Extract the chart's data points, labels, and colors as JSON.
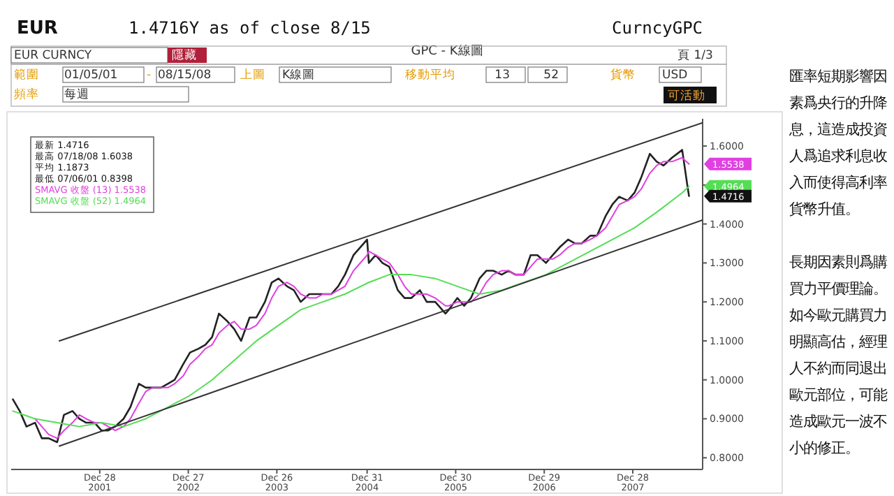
{
  "chart_data": {
    "type": "line",
    "title": "GPC - K線圖",
    "x": [
      "2001-01-05",
      "2001-02-02",
      "2001-03-02",
      "2001-04-06",
      "2001-05-04",
      "2001-06-01",
      "2001-07-06",
      "2001-08-03",
      "2001-09-07",
      "2001-10-05",
      "2001-11-02",
      "2001-12-07",
      "2002-01-04",
      "2002-02-01",
      "2002-03-01",
      "2002-04-05",
      "2002-05-03",
      "2002-06-07",
      "2002-07-05",
      "2002-08-02",
      "2002-09-06",
      "2002-10-04",
      "2002-11-01",
      "2002-12-06",
      "2003-01-03",
      "2003-02-07",
      "2003-03-07",
      "2003-04-04",
      "2003-05-02",
      "2003-06-06",
      "2003-07-04",
      "2003-08-01",
      "2003-09-05",
      "2003-10-03",
      "2003-11-07",
      "2003-12-05",
      "2004-01-02",
      "2004-02-06",
      "2004-03-05",
      "2004-04-02",
      "2004-05-07",
      "2004-06-04",
      "2004-07-02",
      "2004-08-06",
      "2004-09-03",
      "2004-10-01",
      "2004-11-05",
      "2004-12-31",
      "2005-01-07",
      "2005-02-04",
      "2005-03-04",
      "2005-04-01",
      "2005-05-06",
      "2005-06-03",
      "2005-07-01",
      "2005-08-05",
      "2005-09-02",
      "2005-10-07",
      "2005-11-18",
      "2005-12-02",
      "2006-01-06",
      "2006-02-03",
      "2006-03-03",
      "2006-04-07",
      "2006-05-05",
      "2006-06-02",
      "2006-07-07",
      "2006-08-04",
      "2006-09-01",
      "2006-10-06",
      "2006-11-03",
      "2006-12-01",
      "2007-01-05",
      "2007-02-02",
      "2007-03-02",
      "2007-04-06",
      "2007-05-04",
      "2007-06-01",
      "2007-07-06",
      "2007-08-03",
      "2007-09-07",
      "2007-10-05",
      "2007-11-02",
      "2007-12-07",
      "2008-01-04",
      "2008-02-01",
      "2008-03-07",
      "2008-04-04",
      "2008-05-02",
      "2008-06-06",
      "2008-07-18",
      "2008-08-08",
      "2008-08-15"
    ],
    "series": [
      {
        "color": "#222222",
        "values": [
          0.95,
          0.92,
          0.88,
          0.89,
          0.85,
          0.85,
          0.84,
          0.91,
          0.92,
          0.9,
          0.89,
          0.89,
          0.87,
          0.87,
          0.88,
          0.9,
          0.93,
          0.99,
          0.98,
          0.98,
          0.98,
          0.99,
          1.0,
          1.04,
          1.07,
          1.08,
          1.09,
          1.11,
          1.17,
          1.15,
          1.13,
          1.1,
          1.16,
          1.16,
          1.2,
          1.25,
          1.26,
          1.24,
          1.23,
          1.2,
          1.22,
          1.22,
          1.22,
          1.22,
          1.24,
          1.27,
          1.32,
          1.36,
          1.3,
          1.32,
          1.3,
          1.29,
          1.23,
          1.21,
          1.21,
          1.23,
          1.2,
          1.2,
          1.17,
          1.18,
          1.21,
          1.19,
          1.21,
          1.26,
          1.28,
          1.28,
          1.27,
          1.28,
          1.27,
          1.27,
          1.32,
          1.32,
          1.3,
          1.32,
          1.34,
          1.36,
          1.35,
          1.35,
          1.37,
          1.37,
          1.42,
          1.45,
          1.47,
          1.46,
          1.48,
          1.52,
          1.58,
          1.56,
          1.55,
          1.57,
          1.59,
          1.5,
          1.4716
        ]
      },
      {
        "name": "SMAVG 收盤 (13) 1.5538",
        "color": "#e040e0",
        "x": [
          "2001-04-06",
          "2001-05-04",
          "2001-06-01",
          "2001-07-06",
          "2001-08-03",
          "2001-09-07",
          "2001-10-05",
          "2001-11-02",
          "2001-12-07",
          "2002-01-04",
          "2002-02-01",
          "2002-03-01",
          "2002-04-05",
          "2002-05-03",
          "2002-06-07",
          "2002-07-05",
          "2002-08-02",
          "2002-09-06",
          "2002-10-04",
          "2002-11-01",
          "2002-12-06",
          "2003-01-03",
          "2003-02-07",
          "2003-03-07",
          "2003-04-04",
          "2003-05-02",
          "2003-06-06",
          "2003-07-04",
          "2003-08-01",
          "2003-09-05",
          "2003-10-03",
          "2003-11-07",
          "2003-12-05",
          "2004-01-02",
          "2004-02-06",
          "2004-03-05",
          "2004-04-02",
          "2004-05-07",
          "2004-06-04",
          "2004-07-02",
          "2004-08-06",
          "2004-09-03",
          "2004-10-01",
          "2004-11-05",
          "2004-12-31",
          "2005-01-07",
          "2005-02-04",
          "2005-03-04",
          "2005-04-01",
          "2005-05-06",
          "2005-06-03",
          "2005-07-01",
          "2005-08-05",
          "2005-09-02",
          "2005-10-07",
          "2005-11-18",
          "2005-12-02",
          "2006-01-06",
          "2006-02-03",
          "2006-03-03",
          "2006-04-07",
          "2006-05-05",
          "2006-06-02",
          "2006-07-07",
          "2006-08-04",
          "2006-09-01",
          "2006-10-06",
          "2006-11-03",
          "2006-12-01",
          "2007-01-05",
          "2007-02-02",
          "2007-03-02",
          "2007-04-06",
          "2007-05-04",
          "2007-06-01",
          "2007-07-06",
          "2007-08-03",
          "2007-09-07",
          "2007-10-05",
          "2007-11-02",
          "2007-12-07",
          "2008-01-04",
          "2008-02-01",
          "2008-03-07",
          "2008-04-04",
          "2008-05-02",
          "2008-06-06",
          "2008-07-18",
          "2008-08-15"
        ],
        "values": [
          0.9,
          0.88,
          0.86,
          0.85,
          0.87,
          0.89,
          0.91,
          0.9,
          0.89,
          0.89,
          0.88,
          0.87,
          0.88,
          0.9,
          0.94,
          0.97,
          0.98,
          0.98,
          0.98,
          0.99,
          1.01,
          1.04,
          1.06,
          1.08,
          1.09,
          1.12,
          1.14,
          1.15,
          1.13,
          1.13,
          1.14,
          1.17,
          1.21,
          1.24,
          1.25,
          1.24,
          1.22,
          1.21,
          1.21,
          1.22,
          1.22,
          1.23,
          1.24,
          1.28,
          1.32,
          1.33,
          1.32,
          1.31,
          1.3,
          1.27,
          1.24,
          1.22,
          1.22,
          1.22,
          1.21,
          1.19,
          1.19,
          1.2,
          1.2,
          1.2,
          1.22,
          1.25,
          1.27,
          1.28,
          1.28,
          1.27,
          1.27,
          1.29,
          1.31,
          1.31,
          1.31,
          1.32,
          1.34,
          1.35,
          1.35,
          1.36,
          1.37,
          1.39,
          1.42,
          1.45,
          1.46,
          1.47,
          1.49,
          1.53,
          1.55,
          1.56,
          1.56,
          1.57,
          1.5538
        ]
      },
      {
        "name": "SMAVG 收盤 (52) 1.4964",
        "color": "#55dd55",
        "x": [
          "2001-01-05",
          "2001-04-06",
          "2001-07-06",
          "2001-10-05",
          "2002-01-04",
          "2002-04-05",
          "2002-07-05",
          "2002-10-04",
          "2003-01-03",
          "2003-04-04",
          "2003-07-04",
          "2003-10-03",
          "2004-01-02",
          "2004-04-02",
          "2004-07-02",
          "2004-10-01",
          "2005-01-07",
          "2005-04-01",
          "2005-07-01",
          "2005-10-07",
          "2006-01-06",
          "2006-04-07",
          "2006-07-07",
          "2006-10-06",
          "2007-01-05",
          "2007-04-06",
          "2007-07-06",
          "2007-10-05",
          "2008-01-04",
          "2008-04-04",
          "2008-07-18",
          "2008-08-15"
        ],
        "values": [
          0.92,
          0.9,
          0.89,
          0.88,
          0.89,
          0.88,
          0.9,
          0.93,
          0.96,
          1.0,
          1.05,
          1.1,
          1.14,
          1.18,
          1.2,
          1.22,
          1.25,
          1.27,
          1.27,
          1.26,
          1.24,
          1.22,
          1.23,
          1.25,
          1.27,
          1.3,
          1.33,
          1.36,
          1.39,
          1.43,
          1.48,
          1.4964
        ]
      },
      {
        "color": "#333333",
        "x": [
          "2001-07-15",
          "2008-10-10"
        ],
        "values": [
          1.1,
          1.66
        ]
      },
      {
        "color": "#333333",
        "x": [
          "2001-07-15",
          "2008-10-10"
        ],
        "values": [
          0.83,
          1.41
        ]
      }
    ],
    "xlim": [
      "2000-12-29",
      "2008-10-10"
    ],
    "xticks": [
      {
        "value": "2001-12-28",
        "label": "Dec 28 2001"
      },
      {
        "value": "2002-12-27",
        "label": "Dec 27 2002"
      },
      {
        "value": "2003-12-26",
        "label": "Dec 26 2003"
      },
      {
        "value": "2004-12-31",
        "label": "Dec 31 2004"
      },
      {
        "value": "2005-12-30",
        "label": "Dec 30 2005"
      },
      {
        "value": "2006-12-29",
        "label": "Dec 29 2006"
      },
      {
        "value": "2007-12-28",
        "label": "Dec 28 2007"
      }
    ],
    "ylim": [
      0.77,
      1.67
    ],
    "yticks": [
      {
        "value": 0.8,
        "label": "0.8000"
      },
      {
        "value": 0.9,
        "label": "0.9000"
      },
      {
        "value": 1.0,
        "label": "1.0000"
      },
      {
        "value": 1.1,
        "label": "1.1000"
      },
      {
        "value": 1.2,
        "label": "1.2000"
      },
      {
        "value": 1.3,
        "label": "1.3000"
      },
      {
        "value": 1.4,
        "label": "1.4000"
      },
      {
        "value": 1.5,
        "label": null
      },
      {
        "value": 1.6,
        "label": "1.6000"
      }
    ],
    "legend": "top left",
    "grid": false,
    "annotations": [
      "EUR",
      "1.4716Y as of close 8/15",
      "CurncyGPC",
      "EUR CURNCY",
      "隱藏",
      "頁 1/3",
      "範圍",
      "01/05/01",
      "-",
      "08/15/08",
      "上圖",
      "K線圖",
      "移動平均",
      "13",
      "52",
      "貨幣",
      "USD",
      "頻率",
      "每週",
      "可活動",
      "最新 1.4716",
      "最高 07/18/08 1.6038",
      "平均 1.1873",
      "最低 07/06/01 0.8398",
      "匯率短期影響因素爲央行的升降息，這造成投資人爲追求利息收入而使得高利率貨幣升值。",
      "長期因素則爲購買力平價理論。如今歐元購買力明顯高估，經理人不約而同退出歐元部位，可能造成歐元一波不小的修正。",
      {
        "text": "1.5538",
        "x": "2008-08-15",
        "y": 1.5538
      },
      {
        "text": "1.4964",
        "x": "2008-08-15",
        "y": 1.4964
      },
      {
        "text": "1.4716",
        "x": "2008-08-15",
        "y": 1.4716
      }
    ]
  }
}
